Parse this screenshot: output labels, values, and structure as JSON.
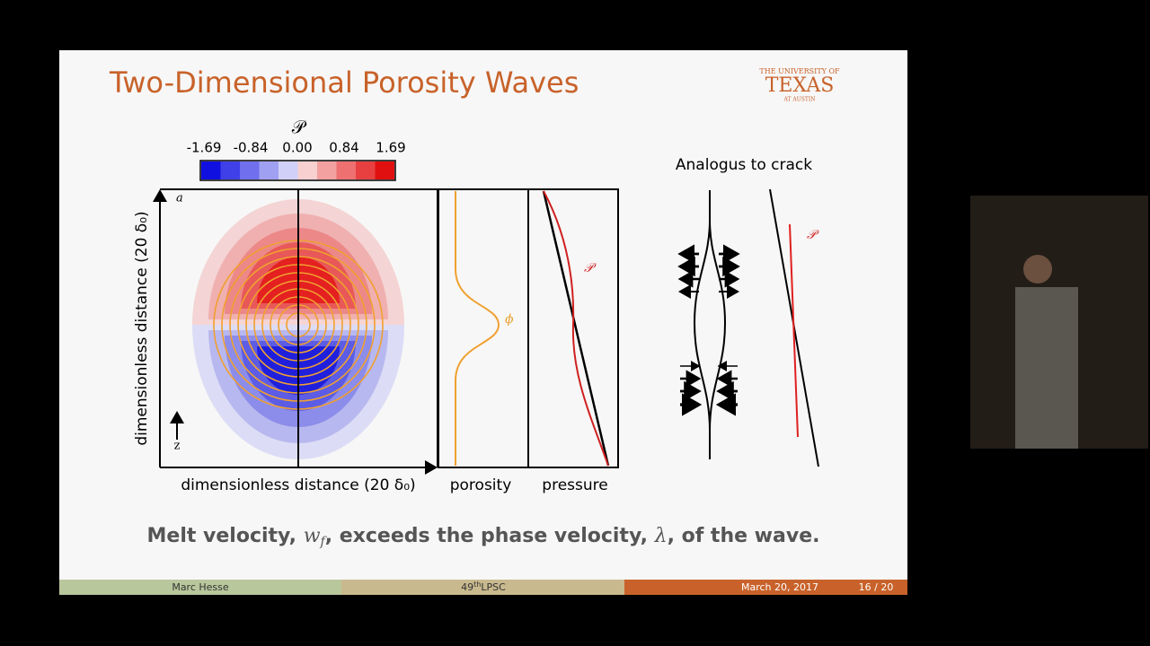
{
  "slide": {
    "title": "Two-Dimensional Porosity Waves",
    "logo": {
      "top": "THE UNIVERSITY OF",
      "main": "TEXAS",
      "bottom": "AT AUSTIN"
    },
    "colorbar": {
      "label": "𝒫",
      "ticks": [
        "-1.69",
        "-0.84",
        "0.00",
        "0.84",
        "1.69"
      ]
    },
    "figure": {
      "y_label": "dimensionless distance (20 δ₀)",
      "x_label": "dimensionless distance (20 δ₀)",
      "corner_label": "a",
      "z_label": "z",
      "porosity_symbol": "ϕ",
      "pressure_symbol": "𝒫",
      "porosity_label": "porosity",
      "pressure_label": "pressure"
    },
    "crack": {
      "title": "Analogus to crack",
      "symbol": "𝒫"
    },
    "statement": [
      "Melt velocity, ",
      "w",
      "f",
      ", exceeds the phase velocity, ",
      "λ",
      ", of the wave."
    ],
    "footer": {
      "author": "Marc Hesse",
      "conference": [
        "49",
        "th",
        "LPSC"
      ],
      "date": "March 20, 2017",
      "page": "16 / 20"
    }
  }
}
